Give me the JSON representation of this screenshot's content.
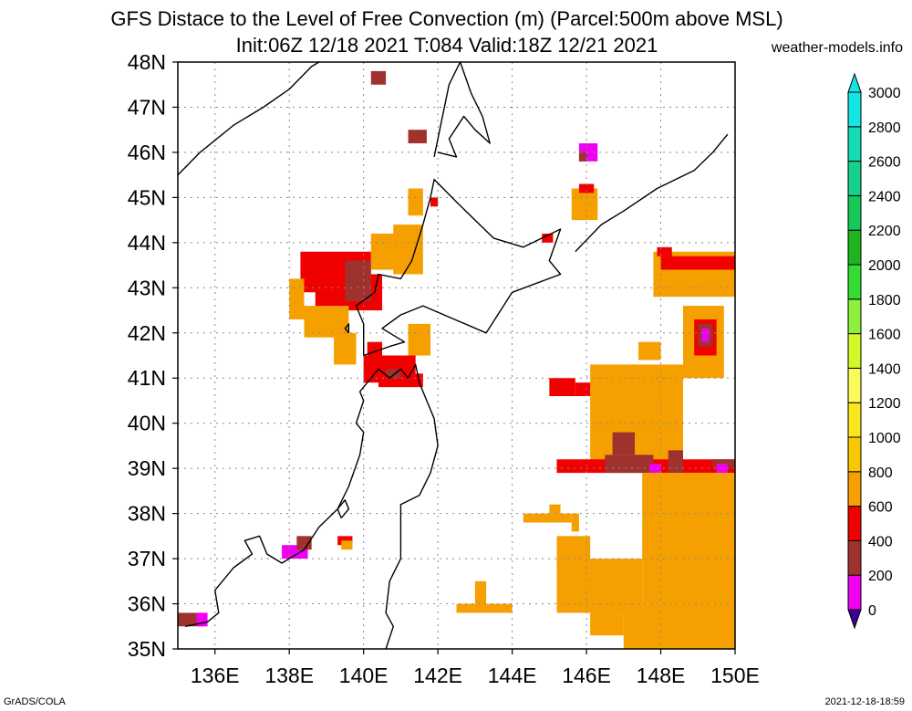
{
  "title_line1": "GFS Distace to the Level of Free Convection (m) (Parcel:500m above MSL)",
  "title_line2": "Init:06Z 12/18 2021 T:084 Valid:18Z 12/21 2021",
  "site": "weather-models.info",
  "footer_left": "GrADS/COLA",
  "footer_right": "2021-12-18-18:59",
  "map": {
    "lon_range": [
      135,
      150
    ],
    "lat_range": [
      35,
      48
    ],
    "lon_ticks": [
      136,
      138,
      140,
      142,
      144,
      146,
      148,
      150
    ],
    "lat_ticks": [
      35,
      36,
      37,
      38,
      39,
      40,
      41,
      42,
      43,
      44,
      45,
      46,
      47,
      48
    ],
    "lon_labels": [
      "136E",
      "138E",
      "140E",
      "142E",
      "144E",
      "146E",
      "148E",
      "150E"
    ],
    "lat_labels": [
      "35N",
      "36N",
      "37N",
      "38N",
      "39N",
      "40N",
      "41N",
      "42N",
      "43N",
      "44N",
      "45N",
      "46N",
      "47N",
      "48N"
    ],
    "grid_style": "dotted"
  },
  "colorbar": {
    "levels": [
      0,
      200,
      400,
      600,
      800,
      1000,
      1200,
      1400,
      1600,
      1800,
      2000,
      2200,
      2400,
      2600,
      2800,
      3000
    ],
    "labels": [
      "0",
      "200",
      "400",
      "600",
      "800",
      "1000",
      "1200",
      "1400",
      "1600",
      "1800",
      "2000",
      "2200",
      "2400",
      "2600",
      "2800",
      "3000"
    ],
    "colors": [
      "#3c0096",
      "#f000f0",
      "#a0322d",
      "#f00000",
      "#f5a000",
      "#fac800",
      "#fae61e",
      "#fafa5a",
      "#d2fa28",
      "#8cf03c",
      "#32dc32",
      "#1eb41e",
      "#14c85a",
      "#14d28c",
      "#14dcb4",
      "#14e6e6"
    ],
    "below_color": "#3c0096",
    "above_color": "#14e6e6"
  },
  "field": [
    {
      "lon": [
        138.3,
        140.2
      ],
      "lat": [
        42.9,
        43.8
      ],
      "level": 600
    },
    {
      "lon": [
        138.7,
        140.5
      ],
      "lat": [
        42.5,
        43.3
      ],
      "level": 600
    },
    {
      "lon": [
        139.5,
        140.2
      ],
      "lat": [
        42.7,
        43.6
      ],
      "level": 400
    },
    {
      "lon": [
        138.0,
        138.4
      ],
      "lat": [
        42.3,
        43.2
      ],
      "level": 800
    },
    {
      "lon": [
        138.4,
        139.6
      ],
      "lat": [
        41.9,
        42.6
      ],
      "level": 800
    },
    {
      "lon": [
        139.2,
        139.8
      ],
      "lat": [
        41.3,
        42.0
      ],
      "level": 800
    },
    {
      "lon": [
        140.2,
        141.4
      ],
      "lat": [
        43.4,
        44.2
      ],
      "level": 800
    },
    {
      "lon": [
        140.8,
        141.6
      ],
      "lat": [
        43.3,
        44.4
      ],
      "level": 800
    },
    {
      "lon": [
        141.2,
        141.6
      ],
      "lat": [
        44.6,
        45.2
      ],
      "level": 800
    },
    {
      "lon": [
        140.0,
        141.4
      ],
      "lat": [
        40.9,
        41.5
      ],
      "level": 600
    },
    {
      "lon": [
        140.4,
        141.6
      ],
      "lat": [
        40.8,
        41.1
      ],
      "level": 600
    },
    {
      "lon": [
        140.6,
        141.0
      ],
      "lat": [
        41.0,
        41.2
      ],
      "level": 400
    },
    {
      "lon": [
        140.1,
        140.5
      ],
      "lat": [
        41.5,
        41.8
      ],
      "level": 600
    },
    {
      "lon": [
        141.2,
        141.8
      ],
      "lat": [
        41.5,
        42.2
      ],
      "level": 800
    },
    {
      "lon": [
        140.2,
        140.6
      ],
      "lat": [
        47.5,
        47.8
      ],
      "level": 400
    },
    {
      "lon": [
        141.2,
        141.7
      ],
      "lat": [
        46.2,
        46.5
      ],
      "level": 400
    },
    {
      "lon": [
        141.8,
        142.0
      ],
      "lat": [
        44.8,
        45.0
      ],
      "level": 600
    },
    {
      "lon": [
        145.8,
        146.3
      ],
      "lat": [
        45.8,
        46.2
      ],
      "level": 200
    },
    {
      "lon": [
        145.8,
        146.0
      ],
      "lat": [
        45.8,
        46.0
      ],
      "level": 400
    },
    {
      "lon": [
        145.6,
        146.3
      ],
      "lat": [
        44.5,
        45.2
      ],
      "level": 800
    },
    {
      "lon": [
        145.8,
        146.2
      ],
      "lat": [
        45.1,
        45.3
      ],
      "level": 600
    },
    {
      "lon": [
        144.8,
        145.1
      ],
      "lat": [
        44.0,
        44.2
      ],
      "level": 600
    },
    {
      "lon": [
        147.8,
        150.0
      ],
      "lat": [
        42.8,
        43.8
      ],
      "level": 800
    },
    {
      "lon": [
        148.0,
        150.0
      ],
      "lat": [
        43.4,
        43.7
      ],
      "level": 600
    },
    {
      "lon": [
        147.9,
        148.3
      ],
      "lat": [
        43.7,
        43.9
      ],
      "level": 600
    },
    {
      "lon": [
        148.6,
        149.7
      ],
      "lat": [
        41.0,
        42.6
      ],
      "level": 800
    },
    {
      "lon": [
        148.9,
        149.5
      ],
      "lat": [
        41.5,
        42.3
      ],
      "level": 600
    },
    {
      "lon": [
        149.0,
        149.4
      ],
      "lat": [
        41.7,
        42.2
      ],
      "level": 400
    },
    {
      "lon": [
        149.1,
        149.3
      ],
      "lat": [
        41.8,
        42.1
      ],
      "level": 200
    },
    {
      "lon": [
        146.1,
        148.6
      ],
      "lat": [
        39.0,
        41.3
      ],
      "level": 800
    },
    {
      "lon": [
        147.4,
        148.0
      ],
      "lat": [
        41.4,
        41.8
      ],
      "level": 800
    },
    {
      "lon": [
        145.0,
        145.7
      ],
      "lat": [
        40.6,
        41.0
      ],
      "level": 600
    },
    {
      "lon": [
        145.7,
        146.1
      ],
      "lat": [
        40.6,
        40.9
      ],
      "level": 600
    },
    {
      "lon": [
        146.7,
        147.3
      ],
      "lat": [
        39.3,
        39.8
      ],
      "level": 400
    },
    {
      "lon": [
        145.2,
        150.0
      ],
      "lat": [
        38.9,
        39.2
      ],
      "level": 600
    },
    {
      "lon": [
        146.5,
        147.8
      ],
      "lat": [
        38.9,
        39.3
      ],
      "level": 400
    },
    {
      "lon": [
        148.2,
        148.6
      ],
      "lat": [
        38.9,
        39.4
      ],
      "level": 400
    },
    {
      "lon": [
        149.4,
        150.0
      ],
      "lat": [
        39.0,
        39.2
      ],
      "level": 400
    },
    {
      "lon": [
        147.7,
        148.0
      ],
      "lat": [
        38.9,
        39.1
      ],
      "level": 200
    },
    {
      "lon": [
        149.5,
        149.8
      ],
      "lat": [
        38.9,
        39.1
      ],
      "level": 200
    },
    {
      "lon": [
        147.5,
        150.0
      ],
      "lat": [
        36.0,
        38.9
      ],
      "level": 800
    },
    {
      "lon": [
        145.2,
        147.5
      ],
      "lat": [
        35.8,
        37.0
      ],
      "level": 800
    },
    {
      "lon": [
        145.2,
        146.1
      ],
      "lat": [
        36.8,
        37.5
      ],
      "level": 800
    },
    {
      "lon": [
        147.0,
        150.0
      ],
      "lat": [
        35.0,
        36.0
      ],
      "level": 800
    },
    {
      "lon": [
        146.1,
        147.0
      ],
      "lat": [
        35.3,
        35.8
      ],
      "level": 800
    },
    {
      "lon": [
        144.3,
        145.6
      ],
      "lat": [
        37.8,
        38.0
      ],
      "level": 800
    },
    {
      "lon": [
        145.6,
        145.8
      ],
      "lat": [
        37.6,
        38.0
      ],
      "level": 800
    },
    {
      "lon": [
        145.0,
        145.3
      ],
      "lat": [
        38.0,
        38.2
      ],
      "level": 800
    },
    {
      "lon": [
        142.5,
        144.0
      ],
      "lat": [
        35.8,
        36.0
      ],
      "level": 800
    },
    {
      "lon": [
        143.0,
        143.3
      ],
      "lat": [
        36.0,
        36.5
      ],
      "level": 800
    },
    {
      "lon": [
        139.3,
        139.7
      ],
      "lat": [
        37.3,
        37.5
      ],
      "level": 600
    },
    {
      "lon": [
        139.4,
        139.7
      ],
      "lat": [
        37.2,
        37.4
      ],
      "level": 800
    },
    {
      "lon": [
        137.8,
        138.5
      ],
      "lat": [
        37.0,
        37.3
      ],
      "level": 200
    },
    {
      "lon": [
        138.2,
        138.6
      ],
      "lat": [
        37.2,
        37.5
      ],
      "level": 400
    },
    {
      "lon": [
        135.0,
        135.7
      ],
      "lat": [
        35.5,
        35.8
      ],
      "level": 400
    },
    {
      "lon": [
        135.5,
        135.8
      ],
      "lat": [
        35.5,
        35.8
      ],
      "level": 200
    }
  ],
  "coastlines": [
    [
      [
        135.0,
        45.5
      ],
      [
        135.6,
        46.0
      ],
      [
        136.5,
        46.6
      ],
      [
        137.3,
        47.0
      ],
      [
        138.0,
        47.4
      ],
      [
        138.6,
        47.9
      ],
      [
        138.8,
        48.0
      ]
    ],
    [
      [
        135.2,
        35.5
      ],
      [
        135.8,
        35.6
      ],
      [
        136.1,
        35.8
      ],
      [
        136.0,
        36.3
      ],
      [
        136.5,
        36.8
      ],
      [
        137.0,
        37.1
      ],
      [
        136.8,
        37.4
      ],
      [
        137.2,
        37.5
      ],
      [
        137.4,
        37.1
      ],
      [
        137.8,
        36.9
      ],
      [
        138.4,
        37.2
      ],
      [
        138.8,
        37.7
      ],
      [
        139.3,
        38.1
      ],
      [
        139.6,
        38.6
      ],
      [
        139.9,
        39.3
      ],
      [
        140.0,
        39.8
      ],
      [
        139.8,
        40.0
      ],
      [
        140.0,
        40.5
      ],
      [
        139.9,
        40.7
      ],
      [
        140.4,
        41.2
      ],
      [
        140.7,
        41.0
      ],
      [
        141.0,
        41.2
      ],
      [
        141.2,
        41.0
      ],
      [
        141.4,
        41.3
      ],
      [
        141.5,
        40.9
      ],
      [
        141.7,
        40.5
      ],
      [
        141.9,
        40.1
      ],
      [
        142.0,
        39.5
      ],
      [
        141.8,
        38.9
      ],
      [
        141.5,
        38.4
      ],
      [
        141.0,
        38.2
      ],
      [
        141.0,
        37.7
      ],
      [
        141.0,
        37.0
      ],
      [
        140.7,
        36.5
      ],
      [
        140.6,
        35.8
      ],
      [
        140.8,
        35.5
      ],
      [
        140.6,
        35.0
      ]
    ],
    [
      [
        140.0,
        41.5
      ],
      [
        140.0,
        42.2
      ],
      [
        139.8,
        42.6
      ],
      [
        140.3,
        42.9
      ],
      [
        140.4,
        43.3
      ],
      [
        141.0,
        43.2
      ],
      [
        141.3,
        43.6
      ],
      [
        141.6,
        44.4
      ],
      [
        141.8,
        45.0
      ],
      [
        141.9,
        45.4
      ],
      [
        142.5,
        44.9
      ],
      [
        143.5,
        44.1
      ],
      [
        144.3,
        43.9
      ],
      [
        145.3,
        44.3
      ],
      [
        145.0,
        43.6
      ],
      [
        145.3,
        43.3
      ],
      [
        144.0,
        42.9
      ],
      [
        143.3,
        42.0
      ],
      [
        141.6,
        42.6
      ],
      [
        141.0,
        42.4
      ],
      [
        140.5,
        42.1
      ],
      [
        141.1,
        41.8
      ],
      [
        140.7,
        41.7
      ],
      [
        140.0,
        41.5
      ]
    ],
    [
      [
        141.9,
        45.9
      ],
      [
        142.1,
        46.7
      ],
      [
        142.3,
        47.5
      ],
      [
        142.6,
        48.0
      ]
    ],
    [
      [
        142.6,
        48.0
      ],
      [
        142.9,
        47.3
      ],
      [
        143.2,
        46.8
      ],
      [
        143.4,
        46.2
      ],
      [
        143.0,
        46.5
      ],
      [
        142.7,
        46.8
      ],
      [
        142.3,
        46.3
      ],
      [
        142.5,
        45.9
      ],
      [
        142.0,
        46.0
      ]
    ],
    [
      [
        145.7,
        43.8
      ],
      [
        146.4,
        44.4
      ],
      [
        147.0,
        44.7
      ],
      [
        147.9,
        45.2
      ],
      [
        148.4,
        45.4
      ],
      [
        148.9,
        45.6
      ],
      [
        149.4,
        46.0
      ],
      [
        149.8,
        46.4
      ]
    ],
    [
      [
        139.4,
        37.9
      ],
      [
        139.6,
        38.1
      ],
      [
        139.5,
        38.3
      ],
      [
        139.3,
        38.1
      ],
      [
        139.4,
        37.9
      ]
    ],
    [
      [
        139.6,
        42.0
      ],
      [
        139.6,
        42.2
      ],
      [
        139.5,
        42.1
      ],
      [
        139.6,
        42.0
      ]
    ]
  ]
}
